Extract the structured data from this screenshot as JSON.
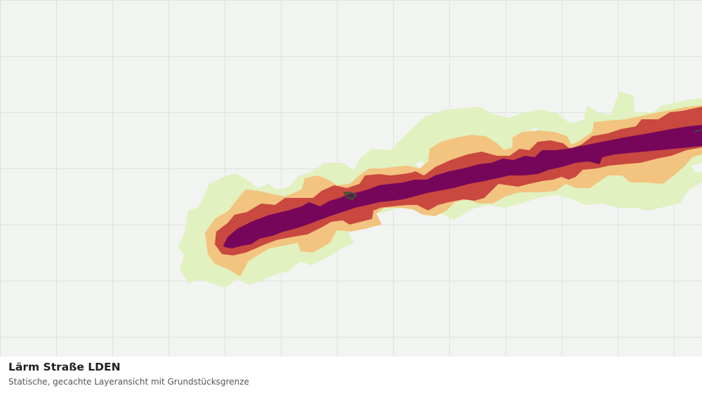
{
  "map": {
    "layer_title": "Lärm Straße LDEN",
    "layer_subtitle": "Statische, gecachte Layeransicht mit Grundstücksgrenze",
    "colors": {
      "background": "#f2f4f2",
      "grid": "#dfe2df",
      "noise_band_1": "#e1f1c0",
      "noise_band_2": "#f3c47f",
      "noise_band_3": "#c94840",
      "noise_band_4": "#76065a",
      "parcel_outline": "#3c5a3c"
    },
    "grid_visible": true
  }
}
